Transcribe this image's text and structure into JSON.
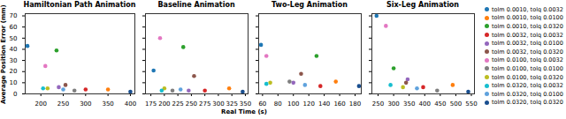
{
  "chart_data": {
    "type": "scatter",
    "x_label": "Real Time (s)",
    "y_label": "Average Position Error (mm)",
    "ylim": [
      0,
      72
    ],
    "yticks": [
      0,
      10,
      20,
      30,
      40,
      50,
      60,
      70
    ],
    "legend": "right",
    "series": [
      {
        "name": "tolm 0.0010, tolq 0.0032",
        "color": "#1f77b4"
      },
      {
        "name": "tolm 0.0010, tolq 0.0100",
        "color": "#ff7f0e"
      },
      {
        "name": "tolm 0.0010, tolq 0.0320",
        "color": "#2ca02c"
      },
      {
        "name": "tolm 0.0032, tolq 0.0032",
        "color": "#d62728"
      },
      {
        "name": "tolm 0.0032, tolq 0.0100",
        "color": "#9467bd"
      },
      {
        "name": "tolm 0.0032, tolq 0.0320",
        "color": "#8c564b"
      },
      {
        "name": "tolm 0.0100, tolq 0.0032",
        "color": "#e377c2"
      },
      {
        "name": "tolm 0.0100, tolq 0.0100",
        "color": "#7f7f7f"
      },
      {
        "name": "tolm 0.0100, tolq 0.0320",
        "color": "#bcbd22"
      },
      {
        "name": "tolm 0.0320, tolq 0.0032",
        "color": "#17becf"
      },
      {
        "name": "tolm 0.0320, tolq 0.0100",
        "color": "#5fa2dd"
      },
      {
        "name": "tolm 0.0320, tolq 0.0320",
        "color": "#1a4f8f"
      }
    ],
    "panels": [
      {
        "title": "Hamiltonian Path Animation",
        "xlim": [
          165,
          410
        ],
        "xticks": [
          200,
          250,
          300,
          350,
          400
        ],
        "points": [
          [
            170,
            43
          ],
          [
            350,
            4
          ],
          [
            235,
            39
          ],
          [
            300,
            4
          ],
          [
            240,
            6
          ],
          [
            255,
            8
          ],
          [
            210,
            25
          ],
          [
            275,
            3
          ],
          [
            215,
            5
          ],
          [
            205,
            5
          ],
          [
            250,
            4
          ],
          [
            400,
            2
          ]
        ]
      },
      {
        "title": "Baseline Animation",
        "xlim": [
          165,
          355
        ],
        "xticks": [
          175,
          200,
          225,
          250,
          275,
          300,
          325,
          350
        ],
        "points": [
          [
            180,
            21
          ],
          [
            320,
            5
          ],
          [
            235,
            42
          ],
          [
            275,
            3
          ],
          [
            245,
            3
          ],
          [
            255,
            16
          ],
          [
            192,
            50
          ],
          [
            215,
            3
          ],
          [
            200,
            5
          ],
          [
            195,
            3
          ],
          [
            230,
            4
          ],
          [
            345,
            2
          ]
        ]
      },
      {
        "title": "Two-Leg Animation",
        "xlim": [
          55,
          188
        ],
        "xticks": [
          60,
          80,
          100,
          120,
          140,
          160,
          180
        ],
        "points": [
          [
            58,
            44
          ],
          [
            155,
            11
          ],
          [
            130,
            34
          ],
          [
            135,
            7
          ],
          [
            100,
            10
          ],
          [
            110,
            18
          ],
          [
            65,
            34
          ],
          [
            95,
            11
          ],
          [
            70,
            10
          ],
          [
            65,
            9
          ],
          [
            115,
            8
          ],
          [
            185,
            7
          ]
        ]
      },
      {
        "title": "Six-Leg Animation",
        "xlim": [
          230,
          560
        ],
        "xticks": [
          250,
          300,
          350,
          400,
          450,
          500,
          550
        ],
        "points": [
          [
            245,
            70
          ],
          [
            490,
            8
          ],
          [
            300,
            23
          ],
          [
            395,
            6
          ],
          [
            345,
            13
          ],
          [
            340,
            10
          ],
          [
            275,
            61
          ],
          [
            440,
            3
          ],
          [
            330,
            6
          ],
          [
            290,
            8
          ],
          [
            375,
            5
          ],
          [
            540,
            2
          ]
        ]
      }
    ]
  }
}
